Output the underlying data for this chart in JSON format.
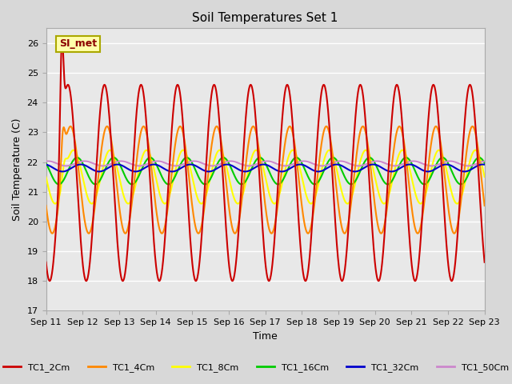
{
  "title": "Soil Temperatures Set 1",
  "xlabel": "Time",
  "ylabel": "Soil Temperature (C)",
  "annotation": "SI_met",
  "ylim": [
    17.0,
    26.5
  ],
  "x_tick_labels": [
    "Sep 11",
    "Sep 12",
    "Sep 13",
    "Sep 14",
    "Sep 15",
    "Sep 16",
    "Sep 17",
    "Sep 18",
    "Sep 19",
    "Sep 20",
    "Sep 21",
    "Sep 22",
    "Sep 23"
  ],
  "background_color": "#d8d8d8",
  "plot_bg_color": "#e8e8e8",
  "series_colors": {
    "TC1_2Cm": "#cc0000",
    "TC1_4Cm": "#ff8800",
    "TC1_8Cm": "#ffff00",
    "TC1_16Cm": "#00cc00",
    "TC1_32Cm": "#0000cc",
    "TC1_50Cm": "#cc88cc"
  }
}
